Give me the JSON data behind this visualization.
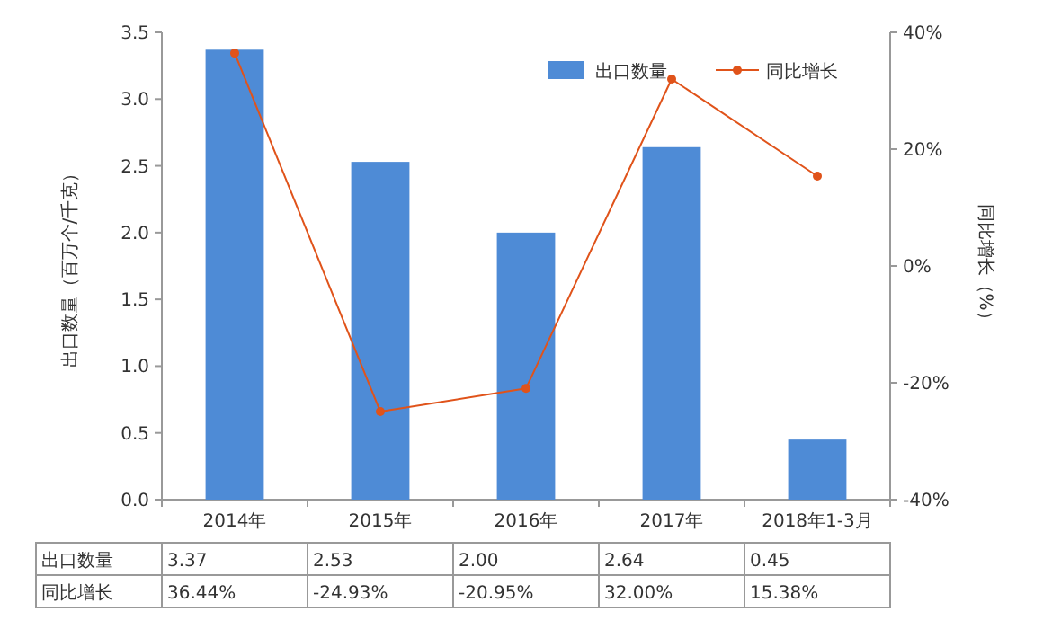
{
  "chart_data": {
    "type": "bar",
    "categories": [
      "2014年",
      "2015年",
      "2016年",
      "2017年",
      "2018年1-3月"
    ],
    "series": [
      {
        "name": "出口数量",
        "color": "#4e8bd6",
        "values": [
          3.37,
          2.53,
          2.0,
          2.64,
          0.45
        ],
        "value_labels": [
          "3.37",
          "2.53",
          "2.00",
          "2.64",
          "0.45"
        ]
      },
      {
        "name": "同比增长",
        "type": "line",
        "axis": "y2",
        "color": "#e0531a",
        "values": [
          36.44,
          -24.93,
          -20.95,
          32.0,
          15.38
        ],
        "value_labels": [
          "36.44%",
          "-24.93%",
          "-20.95%",
          "32.00%",
          "15.38%"
        ]
      }
    ],
    "ylabel": "出口数量（百万个/千克）",
    "y2label": "同比增长（%）",
    "ylim": [
      0,
      3.5
    ],
    "yticks": [
      {
        "value": 0,
        "label": "0.0"
      },
      {
        "value": 0.5,
        "label": "0.5"
      },
      {
        "value": 1,
        "label": "1.0"
      },
      {
        "value": 1.5,
        "label": "1.5"
      },
      {
        "value": 2,
        "label": "2.0"
      },
      {
        "value": 2.5,
        "label": "2.5"
      },
      {
        "value": 3,
        "label": "3.0"
      },
      {
        "value": 3.5,
        "label": "3.5"
      }
    ],
    "y2lim": [
      -40,
      40
    ],
    "y2ticks": [
      {
        "value": -40,
        "label": "-40%"
      },
      {
        "value": -20,
        "label": "-20%"
      },
      {
        "value": 0,
        "label": "0%"
      },
      {
        "value": 20,
        "label": "20%"
      },
      {
        "value": 40,
        "label": "40%"
      }
    ],
    "marker": "circle",
    "legend": "top right"
  }
}
